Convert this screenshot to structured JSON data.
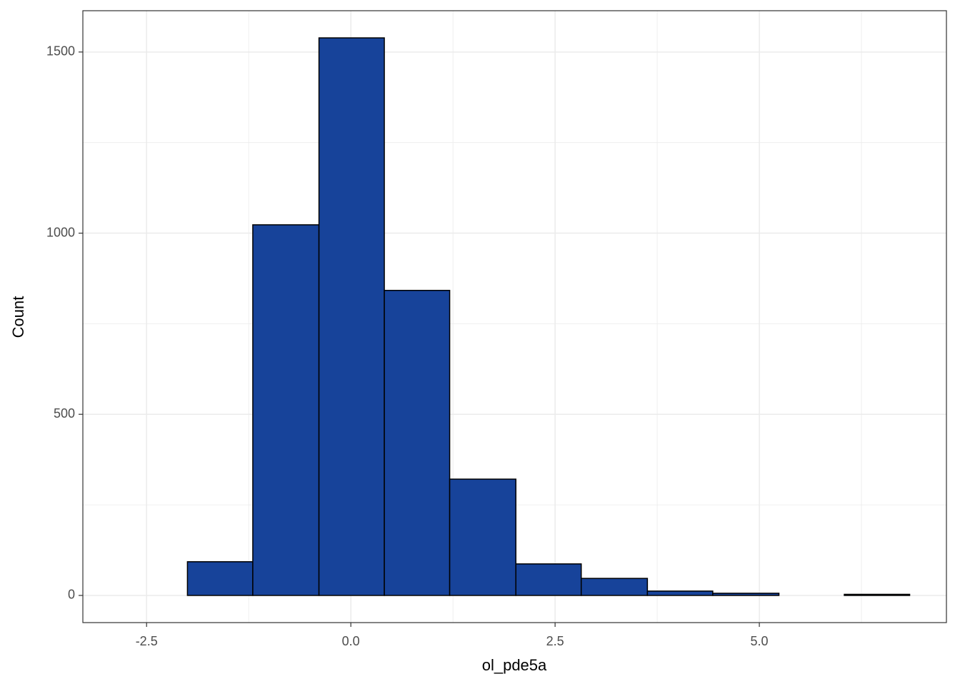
{
  "chart_data": {
    "type": "histogram",
    "x_label": "ol_pde5a",
    "y_label": "Count",
    "bins": [
      -2.81,
      -2.0,
      -1.2,
      -0.39,
      0.41,
      1.21,
      2.02,
      2.82,
      3.63,
      4.43,
      5.24,
      6.04,
      6.84
    ],
    "counts": [
      0,
      93,
      1023,
      1539,
      842,
      321,
      87,
      47,
      12,
      6,
      0,
      3
    ],
    "color": "#17439a",
    "edge_color": "#000000",
    "xlim": [
      -3.28,
      7.29
    ],
    "ylim": [
      -75,
      1614
    ],
    "xticks": [
      -2.5,
      {
        "value": 0,
        "label": "0.0"
      },
      2.5,
      {
        "value": 5,
        "label": "5.0"
      }
    ],
    "yticks": [
      0,
      500,
      1000,
      1500
    ],
    "x_minor_ticks": [
      -1.25,
      1.25,
      3.75,
      6.25
    ],
    "y_minor_ticks": [
      250,
      750,
      1250
    ],
    "grid": true
  }
}
